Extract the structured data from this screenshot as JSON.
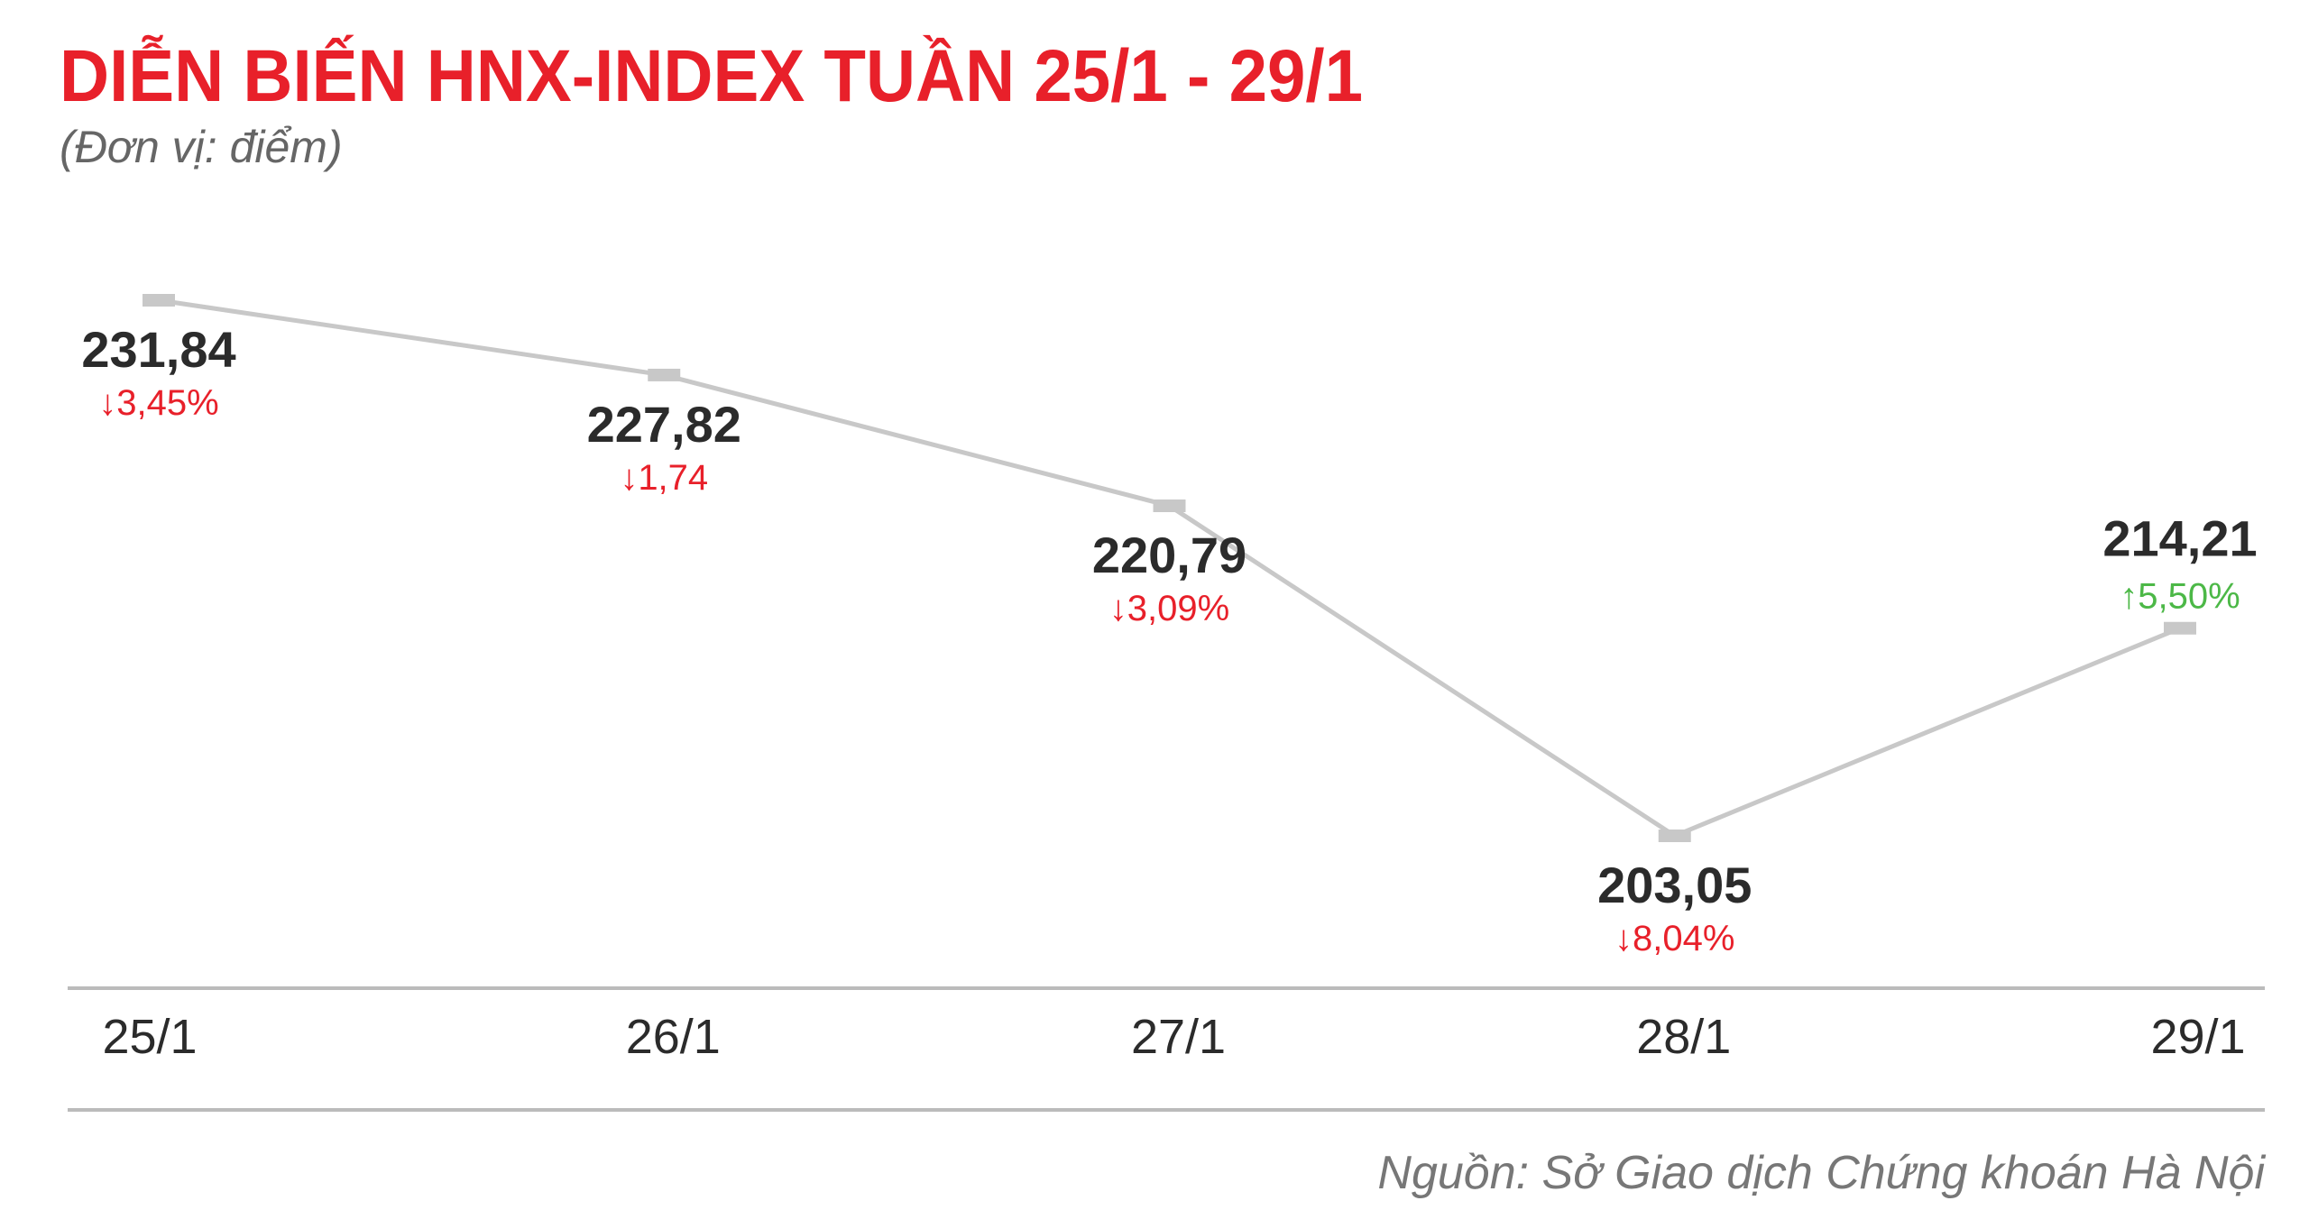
{
  "chart_data": {
    "type": "line",
    "title": "DIỄN BIẾN HNX-INDEX TUẦN 25/1 - 29/1",
    "subtitle": "(Đơn vị: điểm)",
    "source": "Nguồn: Sở Giao dịch Chứng khoán Hà Nội",
    "categories": [
      "25/1",
      "26/1",
      "27/1",
      "28/1",
      "29/1"
    ],
    "series": [
      {
        "name": "HNX-Index",
        "color": "#c8c8c8",
        "values": [
          231.84,
          227.82,
          220.79,
          203.05,
          214.21
        ],
        "value_labels": [
          "231,84",
          "227,82",
          "220,79",
          "203,05",
          "214,21"
        ]
      }
    ],
    "annotations": [
      {
        "text": "↓3,45%",
        "color": "#e8202a"
      },
      {
        "text": "↓1,74",
        "color": "#e8202a"
      },
      {
        "text": "↓3,09%",
        "color": "#e8202a"
      },
      {
        "text": "↓8,04%",
        "color": "#e8202a"
      },
      {
        "text": "↑5,50%",
        "color": "#4cb847"
      }
    ],
    "title_color": "#e8202a"
  }
}
